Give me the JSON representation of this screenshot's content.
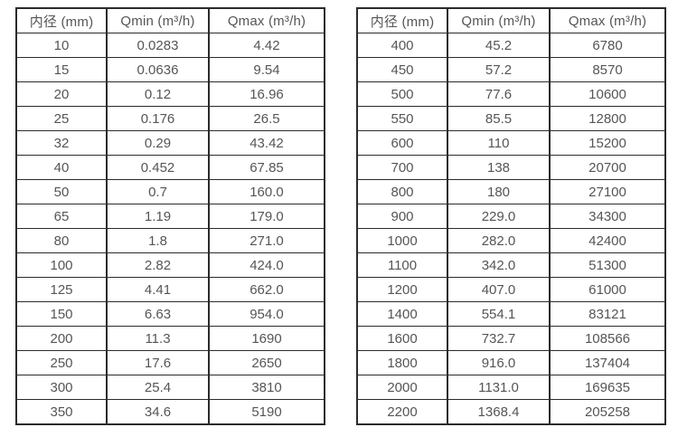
{
  "page": {
    "background": "#ffffff",
    "border_color": "#2b2b2b",
    "text_color": "#555555"
  },
  "tables": [
    {
      "name": "flow-range-table-small-diameters",
      "headers": [
        "内径 (mm)",
        "Qmin (m³/h)",
        "Qmax (m³/h)"
      ],
      "rows": [
        [
          "10",
          "0.0283",
          "4.42"
        ],
        [
          "15",
          "0.0636",
          "9.54"
        ],
        [
          "20",
          "0.12",
          "16.96"
        ],
        [
          "25",
          "0.176",
          "26.5"
        ],
        [
          "32",
          "0.29",
          "43.42"
        ],
        [
          "40",
          "0.452",
          "67.85"
        ],
        [
          "50",
          "0.7",
          "160.0"
        ],
        [
          "65",
          "1.19",
          "179.0"
        ],
        [
          "80",
          "1.8",
          "271.0"
        ],
        [
          "100",
          "2.82",
          "424.0"
        ],
        [
          "125",
          "4.41",
          "662.0"
        ],
        [
          "150",
          "6.63",
          "954.0"
        ],
        [
          "200",
          "11.3",
          "1690"
        ],
        [
          "250",
          "17.6",
          "2650"
        ],
        [
          "300",
          "25.4",
          "3810"
        ],
        [
          "350",
          "34.6",
          "5190"
        ]
      ]
    },
    {
      "name": "flow-range-table-large-diameters",
      "headers": [
        "内径 (mm)",
        "Qmin (m³/h)",
        "Qmax (m³/h)"
      ],
      "rows": [
        [
          "400",
          "45.2",
          "6780"
        ],
        [
          "450",
          "57.2",
          "8570"
        ],
        [
          "500",
          "77.6",
          "10600"
        ],
        [
          "550",
          "85.5",
          "12800"
        ],
        [
          "600",
          "110",
          "15200"
        ],
        [
          "700",
          "138",
          "20700"
        ],
        [
          "800",
          "180",
          "27100"
        ],
        [
          "900",
          "229.0",
          "34300"
        ],
        [
          "1000",
          "282.0",
          "42400"
        ],
        [
          "1100",
          "342.0",
          "51300"
        ],
        [
          "1200",
          "407.0",
          "61000"
        ],
        [
          "1400",
          "554.1",
          "83121"
        ],
        [
          "1600",
          "732.7",
          "108566"
        ],
        [
          "1800",
          "916.0",
          "137404"
        ],
        [
          "2000",
          "1131.0",
          "169635"
        ],
        [
          "2200",
          "1368.4",
          "205258"
        ]
      ]
    }
  ]
}
